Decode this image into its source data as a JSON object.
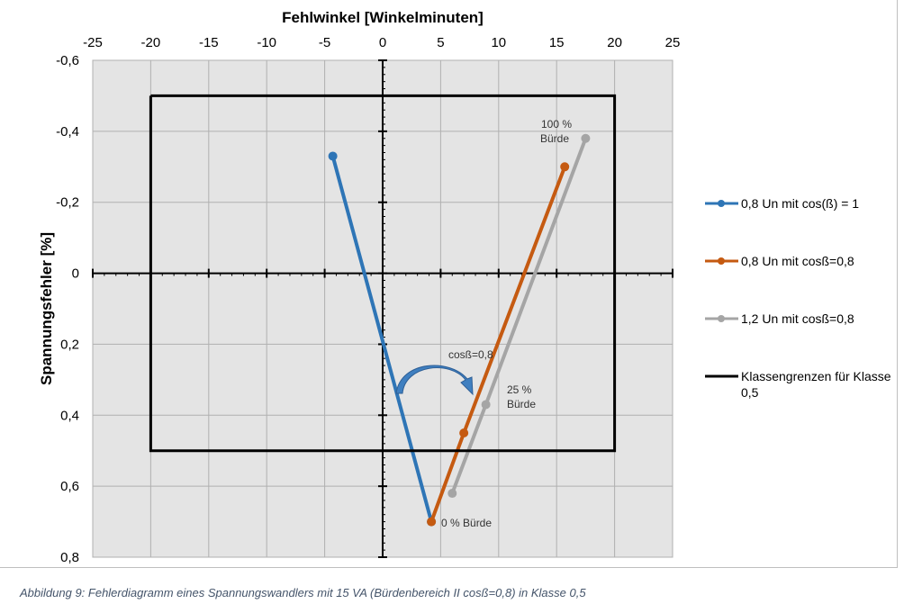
{
  "chart_data": {
    "type": "line",
    "title": "",
    "xlabel": "Fehlwinkel [Winkelminuten]",
    "ylabel": "Spannungsfehler [%]",
    "xlim": [
      -25,
      25
    ],
    "ylim": [
      -0.6,
      0.8
    ],
    "y_inverted": true,
    "x_axis_position": "top",
    "grid": true,
    "xticks": [
      "-25",
      "-20",
      "-15",
      "-10",
      "-5",
      "0",
      "5",
      "10",
      "15",
      "20",
      "25"
    ],
    "yticks": [
      "-0,6",
      "-0,4",
      "-0,2",
      "0",
      "0,2",
      "0,4",
      "0,6",
      "0,8"
    ],
    "legend_position": "right",
    "series": [
      {
        "name": "0,8 Un mit cos(ß) = 1",
        "color": "#2e75b6",
        "points": [
          [
            -4.3,
            -0.33
          ],
          [
            4.2,
            0.7
          ]
        ]
      },
      {
        "name": "0,8 Un mit cosß=0,8",
        "color": "#c55a11",
        "points": [
          [
            4.2,
            0.7
          ],
          [
            7.0,
            0.45
          ],
          [
            15.7,
            -0.3
          ]
        ]
      },
      {
        "name": "1,2 Un mit cosß=0,8",
        "color": "#a5a5a5",
        "points": [
          [
            6.0,
            0.62
          ],
          [
            8.9,
            0.37
          ],
          [
            17.5,
            -0.38
          ]
        ]
      },
      {
        "name": "Klassengrenzen für Klasse 0,5",
        "color": "#000000",
        "points": [
          [
            -20,
            -0.5
          ],
          [
            20,
            -0.5
          ],
          [
            20,
            0.5
          ],
          [
            -20,
            0.5
          ],
          [
            -20,
            -0.5
          ]
        ]
      }
    ],
    "annotations": [
      {
        "text": [
          "100 %",
          "Bürde"
        ],
        "at": [
          14.5,
          -0.42
        ]
      },
      {
        "text": [
          "25 %",
          "Bürde"
        ],
        "at": [
          10.5,
          0.33
        ]
      },
      {
        "text": [
          "0 % Bürde"
        ],
        "at": [
          5,
          0.7
        ]
      },
      {
        "text": [
          "cosß=0,8"
        ],
        "at": [
          5.5,
          0.23
        ]
      }
    ]
  },
  "caption": "Abbildung 9: Fehlerdiagramm eines Spannungswandlers mit 15 VA (Bürdenbereich II cosß=0,8) in Klasse 0,5"
}
